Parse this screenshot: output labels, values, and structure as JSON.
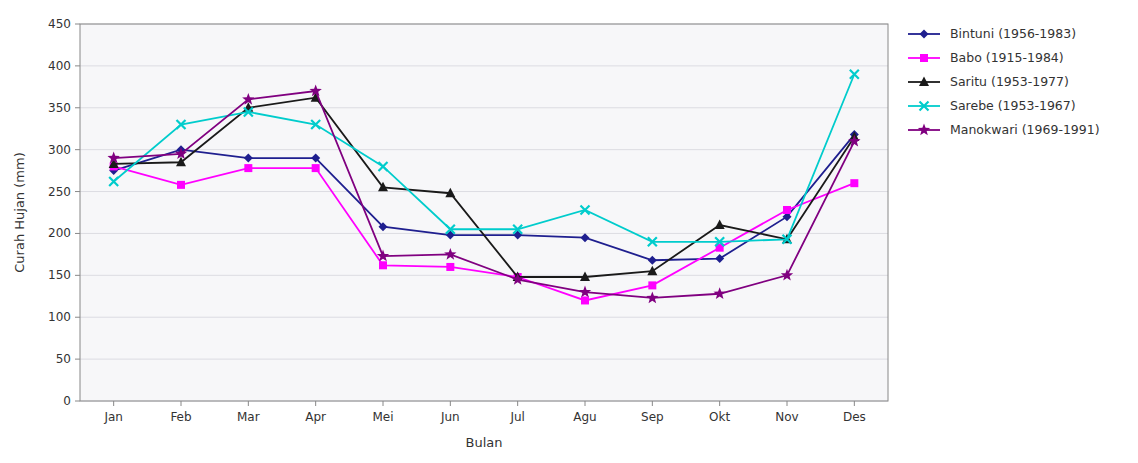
{
  "chart_data": {
    "type": "line",
    "x_label": "Bulan",
    "y_label": "Curah Hujan (mm)",
    "categories": [
      "Jan",
      "Feb",
      "Mar",
      "Apr",
      "Mei",
      "Jun",
      "Jul",
      "Agu",
      "Sep",
      "Okt",
      "Nov",
      "Des"
    ],
    "series": [
      {
        "name": "Bintuni (1956-1983)",
        "color": "#1F1F8F",
        "marker": "diamond",
        "values": [
          275,
          300,
          290,
          290,
          208,
          198,
          198,
          195,
          168,
          170,
          220,
          318
        ]
      },
      {
        "name": "Babo (1915-1984)",
        "color": "#FF00FF",
        "marker": "square",
        "values": [
          280,
          258,
          278,
          278,
          162,
          160,
          148,
          120,
          138,
          183,
          228,
          260
        ]
      },
      {
        "name": "Saritu (1953-1977)",
        "color": "#1A1A1A",
        "marker": "triangle",
        "values": [
          283,
          285,
          350,
          362,
          255,
          248,
          148,
          148,
          155,
          210,
          193,
          315
        ]
      },
      {
        "name": "Sarebe (1953-1967)",
        "color": "#00CCCC",
        "marker": "x",
        "values": [
          262,
          330,
          345,
          330,
          280,
          205,
          205,
          228,
          190,
          190,
          193,
          390
        ]
      },
      {
        "name": "Manokwari (1969-1991)",
        "color": "#800080",
        "marker": "star",
        "values": [
          290,
          295,
          360,
          370,
          173,
          175,
          145,
          130,
          123,
          128,
          150,
          310
        ]
      }
    ],
    "ylim": [
      0,
      450
    ],
    "yticks": [
      0,
      50,
      100,
      150,
      200,
      250,
      300,
      350,
      400,
      450
    ],
    "grid": true,
    "legend": "right"
  }
}
